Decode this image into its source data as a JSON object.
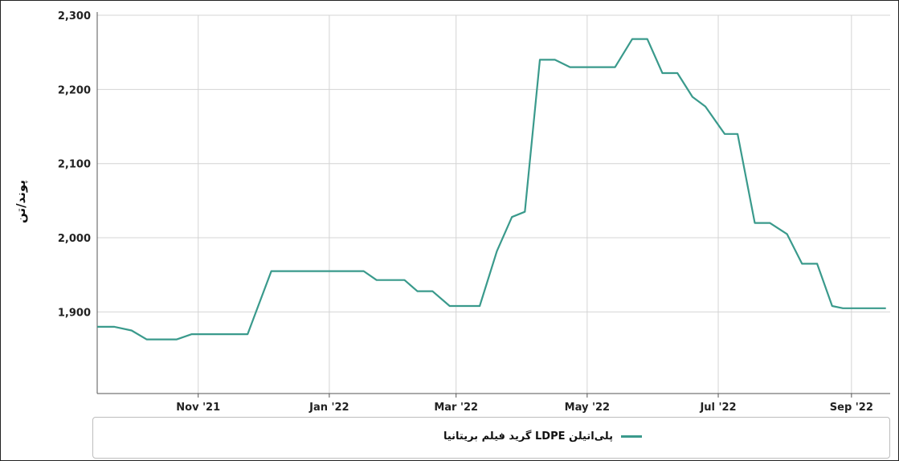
{
  "colors": {
    "series": "#3a9a8c",
    "grid": "#d4d4d4",
    "axis": "#555555"
  },
  "chart_data": {
    "type": "line",
    "ylabel": "پوند/تن",
    "ylim": [
      1790,
      2300
    ],
    "y_ticks": [
      1900,
      2000,
      2100,
      2200,
      2300
    ],
    "y_tick_labels": [
      "1,900",
      "2,000",
      "2,100",
      "2,200",
      "2,300"
    ],
    "xlim": [
      "2021-09-15",
      "2022-09-19"
    ],
    "x_ticks": [
      "2021-11-01",
      "2022-01-01",
      "2022-03-01",
      "2022-05-01",
      "2022-07-01",
      "2022-09-01"
    ],
    "x_tick_labels": [
      "Nov '21",
      "Jan '22",
      "Mar '22",
      "May '22",
      "Jul '22",
      "Sep '22"
    ],
    "grid": true,
    "legend": "bottom",
    "series": [
      {
        "name": "پلی‌اتیلن LDPE گرید فیلم بریتانیا",
        "points": [
          [
            "2021-09-15",
            1880
          ],
          [
            "2021-09-23",
            1880
          ],
          [
            "2021-10-01",
            1875
          ],
          [
            "2021-10-08",
            1863
          ],
          [
            "2021-10-22",
            1863
          ],
          [
            "2021-10-29",
            1870
          ],
          [
            "2021-11-12",
            1870
          ],
          [
            "2021-11-24",
            1870
          ],
          [
            "2021-12-05",
            1955
          ],
          [
            "2021-12-21",
            1955
          ],
          [
            "2022-01-05",
            1955
          ],
          [
            "2022-01-11",
            1955
          ],
          [
            "2022-01-17",
            1955
          ],
          [
            "2022-01-23",
            1943
          ],
          [
            "2022-02-05",
            1943
          ],
          [
            "2022-02-11",
            1928
          ],
          [
            "2022-02-18",
            1928
          ],
          [
            "2022-02-26",
            1908
          ],
          [
            "2022-03-06",
            1908
          ],
          [
            "2022-03-12",
            1908
          ],
          [
            "2022-03-20",
            1982
          ],
          [
            "2022-03-27",
            2028
          ],
          [
            "2022-04-02",
            2035
          ],
          [
            "2022-04-09",
            2240
          ],
          [
            "2022-04-16",
            2240
          ],
          [
            "2022-04-23",
            2230
          ],
          [
            "2022-04-30",
            2230
          ],
          [
            "2022-05-07",
            2230
          ],
          [
            "2022-05-14",
            2230
          ],
          [
            "2022-05-22",
            2268
          ],
          [
            "2022-05-29",
            2268
          ],
          [
            "2022-06-05",
            2222
          ],
          [
            "2022-06-12",
            2222
          ],
          [
            "2022-06-19",
            2190
          ],
          [
            "2022-06-25",
            2177
          ],
          [
            "2022-07-04",
            2140
          ],
          [
            "2022-07-10",
            2140
          ],
          [
            "2022-07-18",
            2020
          ],
          [
            "2022-07-25",
            2020
          ],
          [
            "2022-08-02",
            2005
          ],
          [
            "2022-08-09",
            1965
          ],
          [
            "2022-08-16",
            1965
          ],
          [
            "2022-08-23",
            1908
          ],
          [
            "2022-08-28",
            1905
          ],
          [
            "2022-09-04",
            1905
          ],
          [
            "2022-09-11",
            1905
          ],
          [
            "2022-09-17",
            1905
          ]
        ]
      }
    ]
  }
}
